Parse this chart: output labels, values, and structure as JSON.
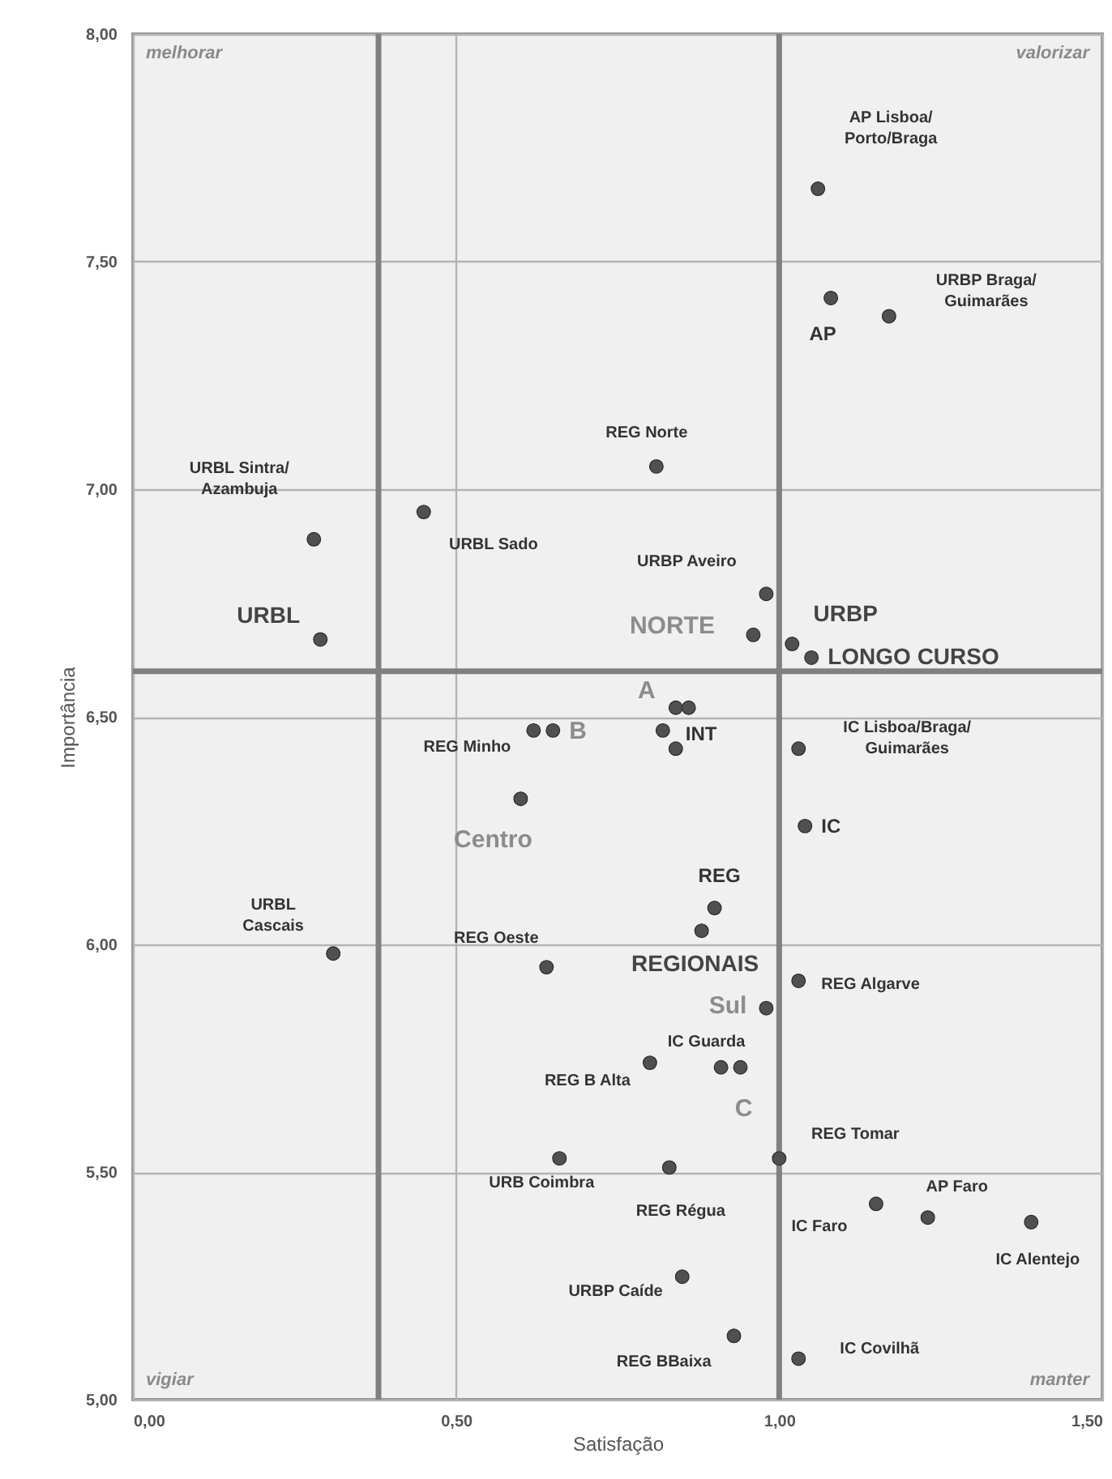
{
  "chart_data": {
    "type": "scatter",
    "xlabel": "Satisfação",
    "ylabel": "Importância",
    "x": [
      0.28,
      0.29,
      0.45,
      0.81,
      1.06,
      1.08,
      1.17,
      0.98,
      0.96,
      1.02,
      1.05,
      0.84,
      0.86,
      0.82,
      0.84,
      0.62,
      0.65,
      0.6,
      1.03,
      1.04,
      0.9,
      0.88,
      1.03,
      0.98,
      0.31,
      0.64,
      0.8,
      0.91,
      0.94,
      1.0,
      0.66,
      0.83,
      1.15,
      1.23,
      1.39,
      0.85,
      0.93,
      1.03
    ],
    "values": [
      6.89,
      6.67,
      6.95,
      7.05,
      7.66,
      7.42,
      7.38,
      6.77,
      6.68,
      6.66,
      6.63,
      6.52,
      6.52,
      6.47,
      6.43,
      6.47,
      6.47,
      6.32,
      6.43,
      6.26,
      6.08,
      6.03,
      5.92,
      5.86,
      5.98,
      5.95,
      5.74,
      5.73,
      5.73,
      5.53,
      5.53,
      5.51,
      5.43,
      5.4,
      5.39,
      5.27,
      5.14,
      5.09
    ],
    "color": "#505050",
    "marker": "circle",
    "grid": true,
    "xlim": [
      0,
      1.5
    ],
    "ylim": [
      5,
      8
    ],
    "xticks": [
      {
        "value": 0,
        "label": "0,00"
      },
      {
        "value": 0.5,
        "label": "0,50"
      },
      {
        "value": 1,
        "label": "1,00"
      },
      {
        "value": 1.5,
        "label": "1,50"
      }
    ],
    "yticks": [
      {
        "value": 5,
        "label": "5,00"
      },
      {
        "value": 5.5,
        "label": "5,50"
      },
      {
        "value": 6,
        "label": "6,00"
      },
      {
        "value": 6.5,
        "label": "6,50"
      },
      {
        "value": 7,
        "label": "7,00"
      },
      {
        "value": 7.5,
        "label": "7,50"
      },
      {
        "value": 8,
        "label": "8,00"
      }
    ],
    "ref_lines": [
      {
        "axis": "x",
        "value": 0.38,
        "color": "#808080"
      },
      {
        "axis": "x",
        "value": 1.0,
        "color": "#808080"
      },
      {
        "axis": "y",
        "value": 6.6,
        "color": "#808080"
      }
    ],
    "annotations": [
      "melhorar",
      "valorizar",
      "vigiar",
      "manter",
      {
        "text": "URBL Sintra/\nAzambuja",
        "x": 0.28,
        "y": 6.89
      },
      {
        "text": "URBL",
        "x": 0.29,
        "y": 6.67
      },
      {
        "text": "URBL Sado",
        "x": 0.45,
        "y": 6.95
      },
      {
        "text": "REG Norte",
        "x": 0.81,
        "y": 7.05
      },
      {
        "text": "AP Lisboa/\nPorto/Braga",
        "x": 1.06,
        "y": 7.66
      },
      {
        "text": "AP",
        "x": 1.08,
        "y": 7.42
      },
      {
        "text": "URBP Braga/\nGuimarães",
        "x": 1.17,
        "y": 7.38
      },
      {
        "text": "URBP Aveiro",
        "x": 0.98,
        "y": 6.77
      },
      {
        "text": "NORTE",
        "x": 0.96,
        "y": 6.68
      },
      {
        "text": "URBP",
        "x": 1.02,
        "y": 6.66
      },
      {
        "text": "LONGO CURSO",
        "x": 1.05,
        "y": 6.63
      },
      {
        "text": "A",
        "x": 0.84,
        "y": 6.52
      },
      {
        "text": "INT",
        "x": 0.82,
        "y": 6.47
      },
      {
        "text": "REG Minho",
        "x": 0.62,
        "y": 6.47
      },
      {
        "text": "B",
        "x": 0.65,
        "y": 6.47
      },
      {
        "text": "Centro",
        "x": 0.6,
        "y": 6.32
      },
      {
        "text": "IC Lisboa/Braga/\nGuimarães",
        "x": 1.03,
        "y": 6.43
      },
      {
        "text": "IC",
        "x": 1.04,
        "y": 6.26
      },
      {
        "text": "REG",
        "x": 0.9,
        "y": 6.08
      },
      {
        "text": "REGIONAIS",
        "x": 0.88,
        "y": 6.03
      },
      {
        "text": "REG Algarve",
        "x": 1.03,
        "y": 5.92
      },
      {
        "text": "Sul",
        "x": 0.98,
        "y": 5.86
      },
      {
        "text": "URBL\nCascais",
        "x": 0.31,
        "y": 5.98
      },
      {
        "text": "REG Oeste",
        "x": 0.64,
        "y": 5.95
      },
      {
        "text": "REG B Alta",
        "x": 0.8,
        "y": 5.74
      },
      {
        "text": "IC Guarda",
        "x": 0.91,
        "y": 5.73
      },
      {
        "text": "C",
        "x": 0.94,
        "y": 5.73
      },
      {
        "text": "REG Tomar",
        "x": 1.0,
        "y": 5.53
      },
      {
        "text": "URB Coimbra",
        "x": 0.66,
        "y": 5.53
      },
      {
        "text": "REG Régua",
        "x": 0.83,
        "y": 5.51
      },
      {
        "text": "IC Faro",
        "x": 1.15,
        "y": 5.43
      },
      {
        "text": "AP Faro",
        "x": 1.23,
        "y": 5.4
      },
      {
        "text": "IC Alentejo",
        "x": 1.39,
        "y": 5.39
      },
      {
        "text": "URBP Caíde",
        "x": 0.85,
        "y": 5.27
      },
      {
        "text": "REG BBaixa",
        "x": 0.93,
        "y": 5.14
      },
      {
        "text": "IC Covilhã",
        "x": 1.03,
        "y": 5.09
      }
    ]
  }
}
